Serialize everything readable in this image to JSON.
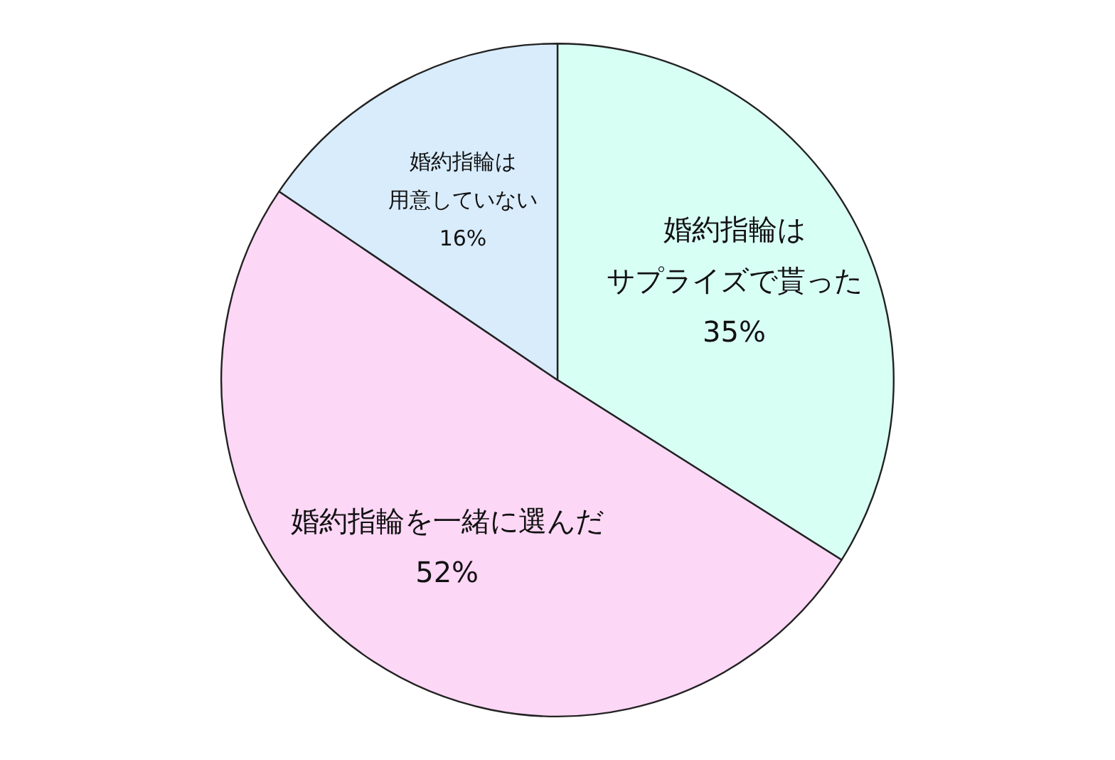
{
  "chart_data": {
    "type": "pie",
    "categories": [
      "婚約指輪はサプライズで貰った",
      "婚約指輪を一緒に選んだ",
      "婚約指輪は用意していない"
    ],
    "values": [
      35,
      52,
      16
    ],
    "value_labels": [
      "35%",
      "52%",
      "16%"
    ],
    "colors": [
      "#d8fff4",
      "#fdd7f6",
      "#d8ecfc"
    ],
    "legend": false
  }
}
